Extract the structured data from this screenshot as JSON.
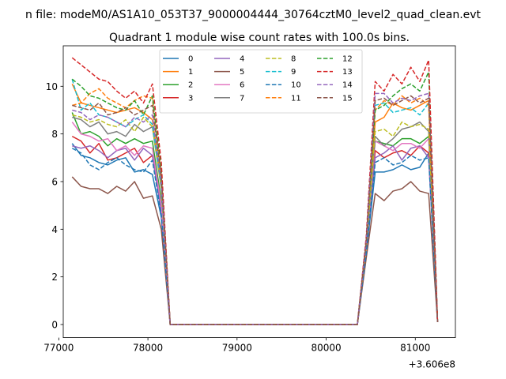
{
  "chart_data": {
    "type": "line",
    "suptitle": "n file: modeM0/AS1A10_053T37_9000004444_30764cztM0_level2_quad_clean.evt",
    "title": "Quadrant 1 module wise count rates with 100.0s bins.",
    "xlabel": "",
    "ylabel": "",
    "x_offset_label": "+3.606e8",
    "xlim": [
      77050,
      81450
    ],
    "ylim": [
      -0.55,
      11.7
    ],
    "xticks": [
      77000,
      78000,
      79000,
      80000,
      81000
    ],
    "xtick_labels": [
      "77000",
      "78000",
      "79000",
      "80000",
      "81000"
    ],
    "yticks": [
      0,
      2,
      4,
      6,
      8,
      10
    ],
    "ytick_labels": [
      "0",
      "2",
      "4",
      "6",
      "8",
      "10"
    ],
    "legend_position": "upper center",
    "x": [
      77150,
      77250,
      77350,
      77450,
      77550,
      77650,
      77750,
      77850,
      77950,
      78050,
      78150,
      78250,
      78350,
      78450,
      78550,
      78650,
      78750,
      78850,
      78950,
      79050,
      79150,
      79250,
      79350,
      79450,
      79550,
      79650,
      79750,
      79850,
      79950,
      80050,
      80150,
      80250,
      80350,
      80450,
      80550,
      80650,
      80750,
      80850,
      80950,
      81050,
      81150,
      81250
    ],
    "series": [
      {
        "name": "0",
        "color": "#1f77b4",
        "dash": "solid",
        "values": [
          7.6,
          7.1,
          7.0,
          6.8,
          6.7,
          6.9,
          7.0,
          6.4,
          6.5,
          6.3,
          4.5,
          0,
          0,
          0,
          0,
          0,
          0,
          0,
          0,
          0,
          0,
          0,
          0,
          0,
          0,
          0,
          0,
          0,
          0,
          0,
          0,
          0,
          0,
          3.0,
          6.4,
          6.4,
          6.5,
          6.7,
          6.5,
          6.6,
          7.2,
          0.1
        ]
      },
      {
        "name": "1",
        "color": "#ff7f0e",
        "dash": "solid",
        "values": [
          10.1,
          9.3,
          9.2,
          9.1,
          9.0,
          8.9,
          9.0,
          9.1,
          8.9,
          8.6,
          6.0,
          0,
          0,
          0,
          0,
          0,
          0,
          0,
          0,
          0,
          0,
          0,
          0,
          0,
          0,
          0,
          0,
          0,
          0,
          0,
          0,
          0,
          0,
          3.4,
          8.5,
          8.7,
          9.3,
          9.1,
          9.0,
          9.2,
          9.4,
          0.1
        ]
      },
      {
        "name": "2",
        "color": "#2ca02c",
        "dash": "solid",
        "values": [
          8.9,
          8.0,
          8.1,
          7.9,
          7.5,
          7.8,
          7.6,
          7.8,
          7.6,
          7.7,
          5.2,
          0,
          0,
          0,
          0,
          0,
          0,
          0,
          0,
          0,
          0,
          0,
          0,
          0,
          0,
          0,
          0,
          0,
          0,
          0,
          0,
          0,
          0,
          3.2,
          7.7,
          7.6,
          7.5,
          7.8,
          7.8,
          7.6,
          7.9,
          0.1
        ]
      },
      {
        "name": "3",
        "color": "#d62728",
        "dash": "solid",
        "values": [
          7.9,
          7.7,
          7.2,
          7.6,
          6.9,
          7.0,
          7.2,
          7.4,
          6.8,
          7.1,
          4.8,
          0,
          0,
          0,
          0,
          0,
          0,
          0,
          0,
          0,
          0,
          0,
          0,
          0,
          0,
          0,
          0,
          0,
          0,
          0,
          0,
          0,
          0,
          3.1,
          7.3,
          7.0,
          7.2,
          7.3,
          7.1,
          7.5,
          7.2,
          0.1
        ]
      },
      {
        "name": "4",
        "color": "#9467bd",
        "dash": "solid",
        "values": [
          7.5,
          7.4,
          7.5,
          7.3,
          7.0,
          7.3,
          7.4,
          6.9,
          7.4,
          7.1,
          4.7,
          0,
          0,
          0,
          0,
          0,
          0,
          0,
          0,
          0,
          0,
          0,
          0,
          0,
          0,
          0,
          0,
          0,
          0,
          0,
          0,
          0,
          0,
          3.1,
          7.0,
          7.2,
          7.5,
          6.9,
          7.4,
          7.5,
          7.0,
          0.1
        ]
      },
      {
        "name": "5",
        "color": "#8c564b",
        "dash": "solid",
        "values": [
          6.2,
          5.8,
          5.7,
          5.7,
          5.5,
          5.8,
          5.6,
          6.0,
          5.3,
          5.4,
          4.0,
          0,
          0,
          0,
          0,
          0,
          0,
          0,
          0,
          0,
          0,
          0,
          0,
          0,
          0,
          0,
          0,
          0,
          0,
          0,
          0,
          0,
          0,
          2.8,
          5.5,
          5.2,
          5.6,
          5.7,
          6.0,
          5.6,
          5.5,
          0.1
        ]
      },
      {
        "name": "6",
        "color": "#e377c2",
        "dash": "solid",
        "values": [
          8.5,
          8.0,
          7.9,
          7.7,
          7.8,
          7.3,
          7.5,
          7.1,
          7.5,
          7.4,
          5.0,
          0,
          0,
          0,
          0,
          0,
          0,
          0,
          0,
          0,
          0,
          0,
          0,
          0,
          0,
          0,
          0,
          0,
          0,
          0,
          0,
          0,
          0,
          3.2,
          7.7,
          7.5,
          7.3,
          7.6,
          7.6,
          7.4,
          7.8,
          0.1
        ]
      },
      {
        "name": "7",
        "color": "#7f7f7f",
        "dash": "solid",
        "values": [
          8.7,
          8.6,
          8.3,
          8.5,
          8.0,
          8.1,
          7.9,
          8.4,
          8.1,
          8.3,
          5.7,
          0,
          0,
          0,
          0,
          0,
          0,
          0,
          0,
          0,
          0,
          0,
          0,
          0,
          0,
          0,
          0,
          0,
          0,
          0,
          0,
          0,
          0,
          3.3,
          7.9,
          7.5,
          7.8,
          8.2,
          8.3,
          8.5,
          8.1,
          0.1
        ]
      },
      {
        "name": "8",
        "color": "#bcbd22",
        "dash": "dashed",
        "values": [
          8.8,
          8.7,
          8.5,
          8.6,
          8.4,
          8.3,
          8.6,
          8.1,
          8.7,
          8.3,
          5.8,
          0,
          0,
          0,
          0,
          0,
          0,
          0,
          0,
          0,
          0,
          0,
          0,
          0,
          0,
          0,
          0,
          0,
          0,
          0,
          0,
          0,
          0,
          3.3,
          8.1,
          8.2,
          7.9,
          8.5,
          8.3,
          8.4,
          8.2,
          0.1
        ]
      },
      {
        "name": "9",
        "color": "#17becf",
        "dash": "dashed",
        "values": [
          10.3,
          9.0,
          9.3,
          8.8,
          8.7,
          8.5,
          8.3,
          8.6,
          8.8,
          8.4,
          5.9,
          0,
          0,
          0,
          0,
          0,
          0,
          0,
          0,
          0,
          0,
          0,
          0,
          0,
          0,
          0,
          0,
          0,
          0,
          0,
          0,
          0,
          0,
          3.4,
          9.2,
          9.3,
          8.9,
          9.0,
          9.1,
          8.8,
          9.3,
          0.1
        ]
      },
      {
        "name": "10",
        "color": "#1f77b4",
        "dash": "dashed",
        "values": [
          7.4,
          7.2,
          6.7,
          6.5,
          6.8,
          7.0,
          6.7,
          6.5,
          6.4,
          6.9,
          4.6,
          0,
          0,
          0,
          0,
          0,
          0,
          0,
          0,
          0,
          0,
          0,
          0,
          0,
          0,
          0,
          0,
          0,
          0,
          0,
          0,
          0,
          0,
          3.0,
          6.8,
          7.0,
          6.7,
          6.8,
          7.1,
          6.9,
          7.0,
          0.1
        ]
      },
      {
        "name": "11",
        "color": "#ff7f0e",
        "dash": "dashed",
        "values": [
          9.2,
          9.3,
          9.7,
          9.9,
          9.5,
          9.3,
          9.1,
          9.4,
          9.6,
          9.5,
          6.3,
          0,
          0,
          0,
          0,
          0,
          0,
          0,
          0,
          0,
          0,
          0,
          0,
          0,
          0,
          0,
          0,
          0,
          0,
          0,
          0,
          0,
          0,
          3.5,
          9.0,
          9.4,
          9.2,
          9.6,
          9.3,
          9.5,
          9.2,
          0.1
        ]
      },
      {
        "name": "12",
        "color": "#2ca02c",
        "dash": "dashed",
        "values": [
          10.3,
          10.0,
          9.6,
          9.5,
          9.3,
          9.1,
          9.0,
          9.4,
          8.8,
          9.6,
          6.5,
          0,
          0,
          0,
          0,
          0,
          0,
          0,
          0,
          0,
          0,
          0,
          0,
          0,
          0,
          0,
          0,
          0,
          0,
          0,
          0,
          0,
          0,
          3.6,
          9.0,
          9.2,
          9.6,
          9.9,
          10.1,
          9.8,
          10.6,
          0.1
        ]
      },
      {
        "name": "13",
        "color": "#d62728",
        "dash": "dashed",
        "values": [
          11.2,
          10.9,
          10.6,
          10.3,
          10.2,
          9.8,
          9.5,
          9.8,
          9.3,
          10.1,
          6.8,
          0,
          0,
          0,
          0,
          0,
          0,
          0,
          0,
          0,
          0,
          0,
          0,
          0,
          0,
          0,
          0,
          0,
          0,
          0,
          0,
          0,
          0,
          3.7,
          10.2,
          9.8,
          10.5,
          10.1,
          10.8,
          10.2,
          11.1,
          0.1
        ]
      },
      {
        "name": "14",
        "color": "#9467bd",
        "dash": "dashed",
        "values": [
          9.0,
          8.9,
          8.6,
          8.8,
          8.7,
          8.5,
          8.3,
          8.7,
          8.5,
          8.8,
          6.0,
          0,
          0,
          0,
          0,
          0,
          0,
          0,
          0,
          0,
          0,
          0,
          0,
          0,
          0,
          0,
          0,
          0,
          0,
          0,
          0,
          0,
          0,
          3.5,
          9.7,
          9.7,
          9.3,
          9.5,
          9.4,
          9.6,
          9.7,
          0.1
        ]
      },
      {
        "name": "15",
        "color": "#8c564b",
        "dash": "dashed",
        "values": [
          9.2,
          9.1,
          9.0,
          9.3,
          8.8,
          8.9,
          9.1,
          8.8,
          9.0,
          9.2,
          6.2,
          0,
          0,
          0,
          0,
          0,
          0,
          0,
          0,
          0,
          0,
          0,
          0,
          0,
          0,
          0,
          0,
          0,
          0,
          0,
          0,
          0,
          0,
          3.5,
          9.4,
          9.5,
          9.2,
          9.4,
          9.6,
          9.3,
          9.5,
          0.1
        ]
      }
    ]
  }
}
